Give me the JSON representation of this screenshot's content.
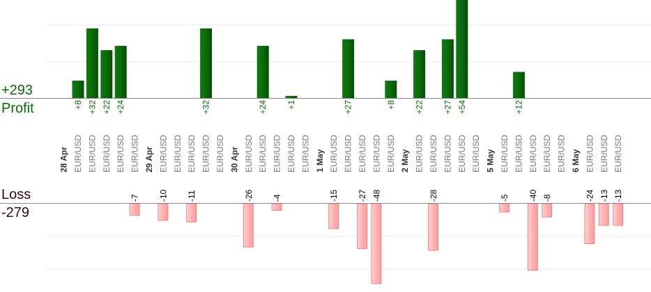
{
  "summary": {
    "profit_total": "+293",
    "profit_label": "Profit",
    "loss_label": "Loss",
    "loss_total": "-279"
  },
  "colors": {
    "profit_bar": "#0b6b0b",
    "profit_text": "#0a6a0a",
    "loss_bar": "#ffb3b3",
    "loss_border": "#e07a7a",
    "loss_text": "#000000",
    "grid": "#e8e8e8",
    "axis": "#888888"
  },
  "chart_data": {
    "type": "bar",
    "title": "",
    "xlabel": "",
    "ylabel": "",
    "ylim_profit": [
      0,
      54
    ],
    "ylim_loss": [
      0,
      48
    ],
    "symbol": "EUR/USD",
    "categories": [
      {
        "date": "28 Apr",
        "trades": 5
      },
      {
        "date": "29 Apr",
        "trades": 5
      },
      {
        "date": "30 Apr",
        "trades": 5
      },
      {
        "date": "1 May",
        "trades": 5
      },
      {
        "date": "2 May",
        "trades": 5
      },
      {
        "date": "5 May",
        "trades": 5
      },
      {
        "date": "6 May",
        "trades": 3
      }
    ],
    "trades": [
      {
        "date": "28 Apr",
        "value": 8,
        "label": "+8"
      },
      {
        "date": "28 Apr",
        "value": 32,
        "label": "+32"
      },
      {
        "date": "28 Apr",
        "value": 22,
        "label": "+22"
      },
      {
        "date": "28 Apr",
        "value": 24,
        "label": "+24"
      },
      {
        "date": "28 Apr",
        "value": -7,
        "label": "-7"
      },
      {
        "date": "29 Apr",
        "value": -10,
        "label": "-10"
      },
      {
        "date": "29 Apr",
        "value": 0,
        "label": ""
      },
      {
        "date": "29 Apr",
        "value": -11,
        "label": "-11"
      },
      {
        "date": "29 Apr",
        "value": 32,
        "label": "+32"
      },
      {
        "date": "29 Apr",
        "value": 0,
        "label": ""
      },
      {
        "date": "30 Apr",
        "value": -26,
        "label": "-26"
      },
      {
        "date": "30 Apr",
        "value": 24,
        "label": "+24"
      },
      {
        "date": "30 Apr",
        "value": -4,
        "label": "-4"
      },
      {
        "date": "30 Apr",
        "value": 1,
        "label": "+1"
      },
      {
        "date": "30 Apr",
        "value": 0,
        "label": ""
      },
      {
        "date": "1 May",
        "value": -15,
        "label": "-15"
      },
      {
        "date": "1 May",
        "value": 27,
        "label": "+27"
      },
      {
        "date": "1 May",
        "value": -27,
        "label": "-27"
      },
      {
        "date": "1 May",
        "value": -48,
        "label": "-48"
      },
      {
        "date": "1 May",
        "value": 8,
        "label": "+8"
      },
      {
        "date": "2 May",
        "value": 22,
        "label": "+22"
      },
      {
        "date": "2 May",
        "value": -28,
        "label": "-28"
      },
      {
        "date": "2 May",
        "value": 27,
        "label": "+27"
      },
      {
        "date": "2 May",
        "value": 54,
        "label": "+54"
      },
      {
        "date": "2 May",
        "value": 0,
        "label": ""
      },
      {
        "date": "5 May",
        "value": -5,
        "label": "-5"
      },
      {
        "date": "5 May",
        "value": 12,
        "label": "+12"
      },
      {
        "date": "5 May",
        "value": -40,
        "label": "-40"
      },
      {
        "date": "5 May",
        "value": -8,
        "label": "-8"
      },
      {
        "date": "5 May",
        "value": 0,
        "label": ""
      },
      {
        "date": "6 May",
        "value": -24,
        "label": "-24"
      },
      {
        "date": "6 May",
        "value": -13,
        "label": "-13"
      },
      {
        "date": "6 May",
        "value": -13,
        "label": "-13"
      }
    ]
  }
}
